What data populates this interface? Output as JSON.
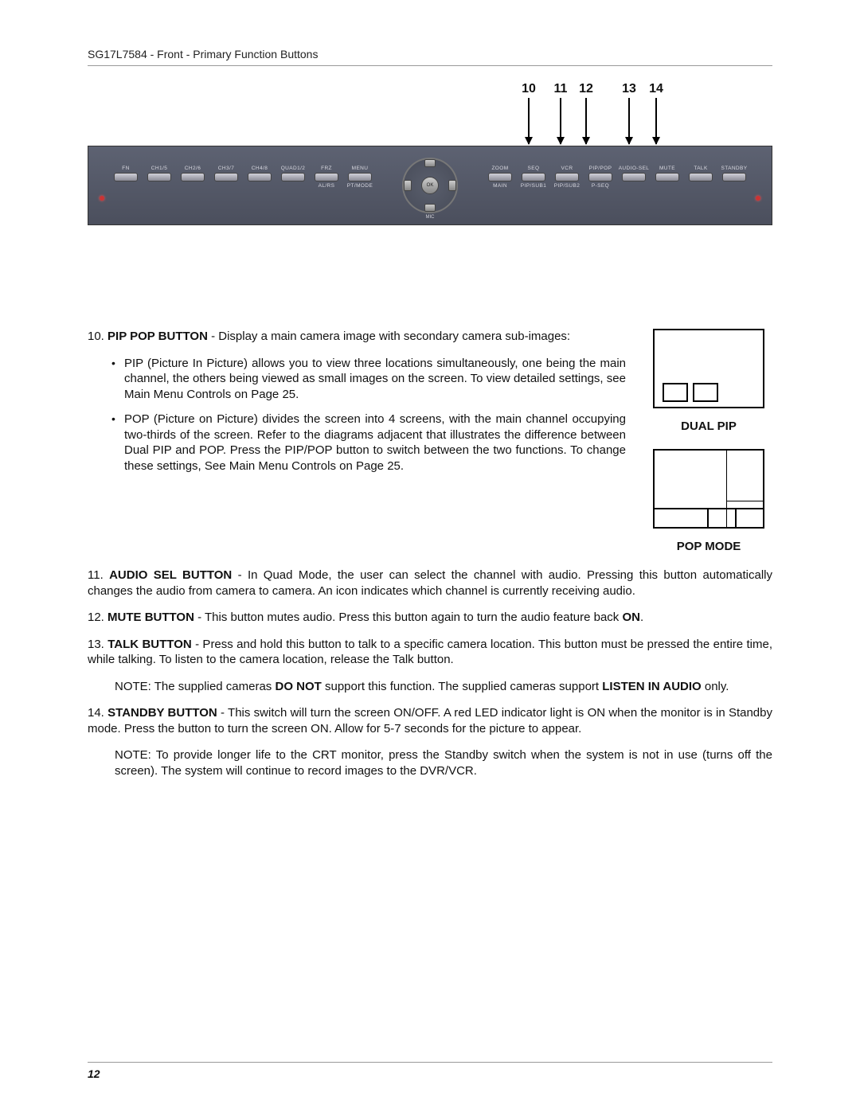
{
  "header": "SG17L7584 - Front - Primary Function Buttons",
  "page_number": "12",
  "callouts": {
    "c10": "10",
    "c11": "11",
    "c12": "12",
    "c13": "13",
    "c14": "14"
  },
  "device": {
    "left_buttons": [
      {
        "top": "FN"
      },
      {
        "top": "CH1/5"
      },
      {
        "top": "CH2/6"
      },
      {
        "top": "CH3/7"
      },
      {
        "top": "CH4/8"
      },
      {
        "top": "QUAD1/2"
      },
      {
        "top": "FRZ",
        "bottom": "AL/RS"
      },
      {
        "top": "MENU",
        "bottom": "PT/MODE"
      }
    ],
    "right_buttons": [
      {
        "top": "ZOOM",
        "bottom": "MAIN"
      },
      {
        "top": "SEQ",
        "bottom": "PIP/SUB1"
      },
      {
        "top": "VCR",
        "bottom": "PIP/SUB2"
      },
      {
        "top": "PIP/POP",
        "bottom": "P-SEQ"
      },
      {
        "top": "AUDIO-SEL"
      },
      {
        "top": "MUTE"
      },
      {
        "top": "TALK"
      },
      {
        "top": "STANDBY"
      }
    ],
    "ok_label": "OK",
    "mic_label": "MIC"
  },
  "diagrams": {
    "dual_pip_label": "DUAL PIP",
    "pop_mode_label": "POP MODE"
  },
  "items": {
    "i10_num": "10. ",
    "i10_title": "PIP POP BUTTON",
    "i10_after": " - Display a main camera image with secondary camera sub-images:",
    "i10_b1": "PIP (Picture In Picture) allows you to view three locations simultaneously, one being the main channel, the others being viewed as small images on the screen. To view detailed settings, see Main Menu Controls on Page 25.",
    "i10_b2": "POP (Picture on Picture) divides the screen into 4 screens, with the main channel occupying two-thirds of the screen. Refer to the diagrams adjacent that illustrates the difference between Dual PIP and POP. Press the PIP/POP button to switch between the two functions. To change these settings, See Main Menu Controls on Page 25.",
    "i11_num": "11. ",
    "i11_title": "AUDIO SEL BUTTON",
    "i11_after": " - In Quad Mode, the user can select the channel with audio. Pressing this button automatically changes the audio from camera to camera. An icon indicates which channel is currently receiving audio.",
    "i12_num": "12. ",
    "i12_title": "MUTE BUTTON",
    "i12_after_a": " - This button mutes audio. Press this button again to turn the audio feature back ",
    "i12_on": "ON",
    "i12_after_b": ".",
    "i13_num": "13. ",
    "i13_title": "TALK BUTTON",
    "i13_after": " - Press and hold this button to talk to a specific camera location. This button must be pressed the entire time, while talking. To listen to the camera location, release the Talk button.",
    "i13_note_a": "NOTE: The supplied cameras ",
    "i13_donot": "DO NOT",
    "i13_note_b": " support this function. The supplied cameras support ",
    "i13_listen": "LISTEN IN AUDIO",
    "i13_note_c": " only.",
    "i14_num": "14. ",
    "i14_title": "STANDBY BUTTON",
    "i14_after": " - This switch will turn the screen ON/OFF. A red LED indicator light is ON when the monitor is in Standby mode. Press the button to turn the screen ON. Allow for 5-7 seconds for the picture to appear.",
    "i14_note": "NOTE: To provide longer life to the CRT monitor, press the Standby switch when the system is not in use (turns off the screen). The system will continue to record images to the DVR/VCR."
  }
}
